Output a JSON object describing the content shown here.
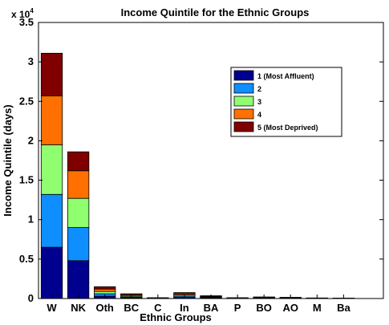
{
  "chart_data": {
    "type": "bar",
    "stacked": true,
    "title": "Income Quintile for the Ethnic Groups",
    "xlabel": "Ethnic Groups",
    "ylabel": "Income Quintile (days)",
    "y_multiplier": "x 10",
    "y_multiplier_exp": "4",
    "ylim": [
      0,
      35000
    ],
    "yticks": [
      {
        "value": 0,
        "label": "0"
      },
      {
        "value": 5000,
        "label": "0.5"
      },
      {
        "value": 10000,
        "label": "1"
      },
      {
        "value": 15000,
        "label": "1.5"
      },
      {
        "value": 20000,
        "label": "2"
      },
      {
        "value": 25000,
        "label": "2.5"
      },
      {
        "value": 30000,
        "label": "3"
      },
      {
        "value": 35000,
        "label": "3.5"
      }
    ],
    "x_slots": 13,
    "categories": [
      "W",
      "NK",
      "Oth",
      "BC",
      "C",
      "In",
      "BA",
      "P",
      "BO",
      "AO",
      "M",
      "Ba"
    ],
    "legend_position": "top-right",
    "series": [
      {
        "name": "1 (Most Affluent)",
        "color": "#00008f",
        "values": [
          6500,
          4800,
          300,
          80,
          20,
          150,
          60,
          20,
          40,
          30,
          15,
          10
        ]
      },
      {
        "name": "2",
        "color": "#0f8fff",
        "values": [
          6700,
          4200,
          300,
          100,
          20,
          150,
          70,
          20,
          40,
          30,
          15,
          10
        ]
      },
      {
        "name": "3",
        "color": "#8fff70",
        "values": [
          6300,
          3700,
          300,
          120,
          20,
          150,
          70,
          20,
          40,
          30,
          15,
          10
        ]
      },
      {
        "name": "4",
        "color": "#ff7000",
        "values": [
          6200,
          3500,
          300,
          140,
          20,
          150,
          70,
          20,
          40,
          30,
          15,
          10
        ]
      },
      {
        "name": "5 (Most Deprived)",
        "color": "#800000",
        "values": [
          5400,
          2400,
          300,
          160,
          20,
          150,
          80,
          20,
          40,
          30,
          15,
          10
        ]
      }
    ]
  }
}
